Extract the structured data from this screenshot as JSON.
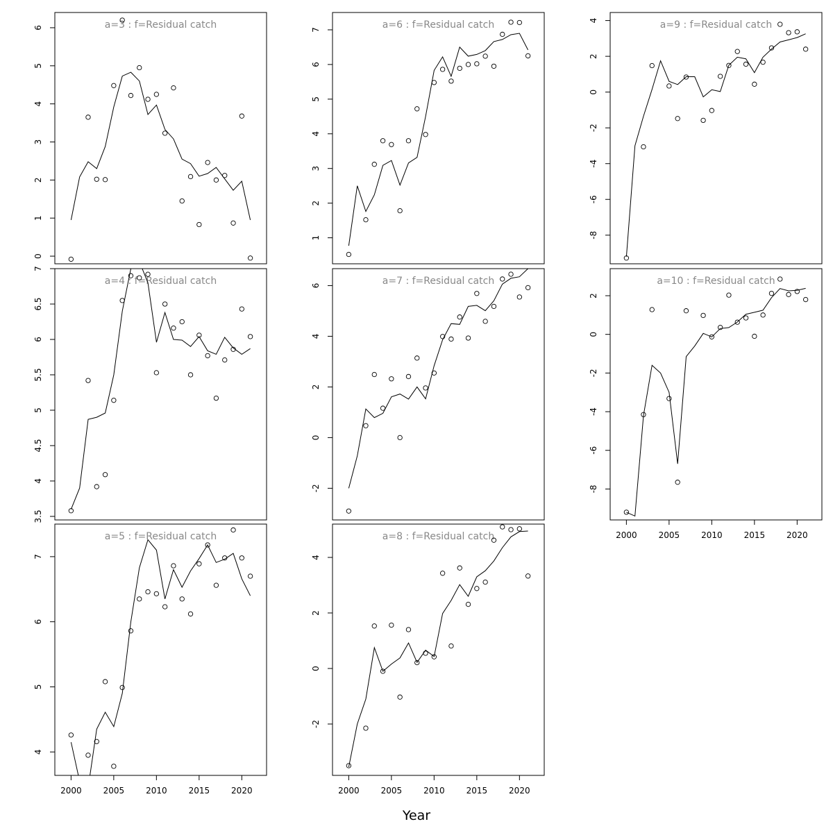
{
  "figure": {
    "xlabel": "Year",
    "x_tick_labels": [
      "2000",
      "2005",
      "2010",
      "2015",
      "2020"
    ]
  },
  "chart_data": [
    {
      "type": "scatter",
      "title": "a=3  :  f=Residual catch",
      "x": [
        2000,
        2001,
        2002,
        2003,
        2004,
        2005,
        2006,
        2007,
        2008,
        2009,
        2010,
        2011,
        2012,
        2013,
        2014,
        2015,
        2016,
        2017,
        2018,
        2019,
        2020,
        2021
      ],
      "series": [
        {
          "kind": "points",
          "values": [
            -0.08,
            null,
            3.65,
            2.02,
            2.01,
            4.48,
            6.2,
            4.22,
            4.95,
            4.12,
            4.25,
            3.23,
            4.42,
            1.45,
            2.09,
            0.83,
            2.46,
            2.0,
            2.12,
            0.87,
            3.68,
            -0.05
          ]
        },
        {
          "kind": "line",
          "values": [
            0.95,
            2.08,
            2.48,
            2.3,
            2.88,
            3.92,
            4.73,
            4.83,
            4.6,
            3.72,
            3.97,
            3.33,
            3.08,
            2.55,
            2.43,
            2.1,
            2.17,
            2.33,
            2.03,
            1.73,
            1.97,
            0.95
          ]
        }
      ],
      "xlim": [
        1998.1,
        2022.9
      ],
      "ylim": [
        -0.2,
        6.4
      ],
      "yticks": [
        0,
        1,
        2,
        3,
        4,
        5,
        6
      ],
      "show_xticks": false
    },
    {
      "type": "scatter",
      "title": "a=4  :  f=Residual catch",
      "x": [
        2000,
        2001,
        2002,
        2003,
        2004,
        2005,
        2006,
        2007,
        2008,
        2009,
        2010,
        2011,
        2012,
        2013,
        2014,
        2015,
        2016,
        2017,
        2018,
        2019,
        2020,
        2021
      ],
      "series": [
        {
          "kind": "points",
          "values": [
            3.58,
            null,
            5.42,
            3.92,
            4.09,
            5.14,
            6.55,
            6.9,
            6.87,
            6.92,
            5.53,
            6.5,
            6.16,
            6.25,
            5.5,
            6.06,
            5.77,
            5.17,
            5.71,
            5.86,
            6.43,
            6.04
          ]
        },
        {
          "kind": "line",
          "values": [
            3.6,
            3.9,
            4.87,
            4.9,
            4.96,
            5.5,
            6.4,
            7.0,
            7.1,
            6.8,
            5.96,
            6.38,
            6.0,
            5.99,
            5.9,
            6.04,
            5.84,
            5.79,
            6.03,
            5.88,
            5.79,
            5.87
          ]
        }
      ],
      "xlim": [
        1998.1,
        2022.9
      ],
      "ylim": [
        3.45,
        7.0
      ],
      "yticks": [
        3.5,
        4.0,
        4.5,
        5.0,
        5.5,
        6.0,
        6.5,
        7.0
      ],
      "show_xticks": false
    },
    {
      "type": "scatter",
      "title": "a=5  :  f=Residual catch",
      "x": [
        2000,
        2001,
        2002,
        2003,
        2004,
        2005,
        2006,
        2007,
        2008,
        2009,
        2010,
        2011,
        2012,
        2013,
        2014,
        2015,
        2016,
        2017,
        2018,
        2019,
        2020,
        2021
      ],
      "series": [
        {
          "kind": "points",
          "values": [
            4.26,
            null,
            3.95,
            4.16,
            5.08,
            3.78,
            4.99,
            5.86,
            6.35,
            6.46,
            6.43,
            6.23,
            6.86,
            6.35,
            6.12,
            6.89,
            7.18,
            6.56,
            6.98,
            7.41,
            6.98,
            6.7
          ]
        },
        {
          "kind": "line",
          "values": [
            4.15,
            3.55,
            3.45,
            4.35,
            4.61,
            4.39,
            4.9,
            6.0,
            6.83,
            7.26,
            7.1,
            6.35,
            6.8,
            6.53,
            6.78,
            6.97,
            7.18,
            6.91,
            6.96,
            7.05,
            6.66,
            6.4
          ]
        }
      ],
      "xlim": [
        1998.1,
        2022.9
      ],
      "ylim": [
        3.64,
        7.5
      ],
      "yticks": [
        4,
        5,
        6,
        7
      ],
      "show_xticks": true
    },
    {
      "type": "scatter",
      "title": "a=6  :  f=Residual catch",
      "x": [
        2000,
        2001,
        2002,
        2003,
        2004,
        2005,
        2006,
        2007,
        2008,
        2009,
        2010,
        2011,
        2012,
        2013,
        2014,
        2015,
        2016,
        2017,
        2018,
        2019,
        2020,
        2021
      ],
      "series": [
        {
          "kind": "points",
          "values": [
            0.52,
            null,
            1.52,
            3.12,
            3.8,
            3.69,
            1.78,
            3.8,
            4.72,
            3.98,
            5.48,
            5.86,
            5.52,
            5.89,
            6.0,
            6.02,
            6.24,
            5.95,
            6.87,
            7.22,
            7.21,
            6.25
          ]
        },
        {
          "kind": "line",
          "values": [
            0.77,
            2.5,
            1.76,
            2.24,
            3.09,
            3.23,
            2.52,
            3.16,
            3.32,
            4.5,
            5.83,
            6.22,
            5.66,
            6.5,
            6.24,
            6.29,
            6.4,
            6.66,
            6.72,
            6.86,
            6.9,
            6.42
          ]
        }
      ],
      "xlim": [
        1998.1,
        2022.9
      ],
      "ylim": [
        0.25,
        7.5
      ],
      "yticks": [
        1,
        2,
        3,
        4,
        5,
        6,
        7
      ],
      "show_xticks": false
    },
    {
      "type": "scatter",
      "title": "a=7  :  f=Residual catch",
      "x": [
        2000,
        2001,
        2002,
        2003,
        2004,
        2005,
        2006,
        2007,
        2008,
        2009,
        2010,
        2011,
        2012,
        2013,
        2014,
        2015,
        2016,
        2017,
        2018,
        2019,
        2020,
        2021
      ],
      "series": [
        {
          "kind": "points",
          "values": [
            -2.9,
            null,
            0.47,
            2.49,
            1.16,
            2.32,
            0.0,
            2.41,
            3.14,
            1.96,
            2.55,
            3.99,
            3.89,
            4.76,
            3.93,
            5.69,
            4.59,
            5.18,
            6.26,
            6.45,
            5.55,
            5.92
          ]
        },
        {
          "kind": "line",
          "values": [
            -2.0,
            -0.72,
            1.13,
            0.79,
            0.96,
            1.61,
            1.72,
            1.52,
            2.0,
            1.53,
            2.84,
            3.86,
            4.5,
            4.47,
            5.18,
            5.22,
            5.01,
            5.4,
            6.06,
            6.29,
            6.35,
            6.67
          ]
        }
      ],
      "xlim": [
        1998.1,
        2022.9
      ],
      "ylim": [
        -3.25,
        6.67
      ],
      "yticks": [
        -2,
        0,
        2,
        4,
        6
      ],
      "show_xticks": false
    },
    {
      "type": "scatter",
      "title": "a=8  :  f=Residual catch",
      "x": [
        2000,
        2001,
        2002,
        2003,
        2004,
        2005,
        2006,
        2007,
        2008,
        2009,
        2010,
        2011,
        2012,
        2013,
        2014,
        2015,
        2016,
        2017,
        2018,
        2019,
        2020,
        2021
      ],
      "series": [
        {
          "kind": "points",
          "values": [
            -3.5,
            null,
            -2.15,
            1.53,
            -0.1,
            1.56,
            -1.03,
            1.4,
            0.21,
            0.55,
            0.42,
            3.43,
            0.81,
            3.62,
            2.31,
            2.88,
            3.11,
            4.62,
            5.1,
            5.0,
            5.03,
            3.33
          ]
        },
        {
          "kind": "line",
          "values": [
            -3.55,
            -2.0,
            -1.1,
            0.75,
            -0.1,
            0.16,
            0.38,
            0.92,
            0.22,
            0.66,
            0.43,
            1.98,
            2.45,
            3.02,
            2.6,
            3.3,
            3.52,
            3.87,
            4.35,
            4.74,
            4.93,
            4.95
          ]
        }
      ],
      "xlim": [
        1998.1,
        2022.9
      ],
      "ylim": [
        -3.85,
        5.2
      ],
      "yticks": [
        -2,
        0,
        2,
        4
      ],
      "show_xticks": true
    },
    {
      "type": "scatter",
      "title": "a=9  :  f=Residual catch",
      "x": [
        2000,
        2001,
        2002,
        2003,
        2004,
        2005,
        2006,
        2007,
        2008,
        2009,
        2010,
        2011,
        2012,
        2013,
        2014,
        2015,
        2016,
        2017,
        2018,
        2019,
        2020,
        2021
      ],
      "series": [
        {
          "kind": "points",
          "values": [
            -9.28,
            null,
            -3.06,
            1.48,
            null,
            0.34,
            -1.48,
            0.84,
            null,
            -1.58,
            -1.03,
            0.88,
            1.49,
            2.27,
            1.56,
            0.44,
            1.67,
            2.47,
            3.79,
            3.32,
            3.37,
            2.4
          ]
        },
        {
          "kind": "line",
          "values": [
            -9.2,
            -3.0,
            -1.35,
            0.15,
            1.75,
            0.6,
            0.42,
            0.86,
            0.86,
            -0.27,
            0.13,
            0.03,
            1.5,
            1.95,
            1.86,
            1.09,
            1.95,
            2.4,
            2.8,
            2.92,
            3.05,
            3.26
          ]
        }
      ],
      "xlim": [
        1998.1,
        2022.9
      ],
      "ylim": [
        -9.6,
        4.45
      ],
      "yticks": [
        -8,
        -6,
        -4,
        -2,
        0,
        2,
        4
      ],
      "show_xticks": false
    },
    {
      "type": "scatter",
      "title": "a=10  :  f=Residual catch",
      "x": [
        2000,
        2001,
        2002,
        2003,
        2004,
        2005,
        2006,
        2007,
        2008,
        2009,
        2010,
        2011,
        2012,
        2013,
        2014,
        2015,
        2016,
        2017,
        2018,
        2019,
        2020,
        2021
      ],
      "series": [
        {
          "kind": "points",
          "values": [
            -9.2,
            null,
            -4.15,
            1.28,
            null,
            -3.32,
            -7.65,
            1.22,
            null,
            0.98,
            -0.13,
            0.36,
            2.03,
            0.63,
            0.85,
            -0.1,
            1.0,
            2.12,
            2.86,
            2.06,
            2.22,
            1.8
          ]
        },
        {
          "kind": "line",
          "values": [
            -9.2,
            -9.4,
            -4.2,
            -1.6,
            -2.0,
            -3.0,
            -6.7,
            -1.15,
            -0.6,
            0.05,
            -0.13,
            0.3,
            0.35,
            0.64,
            1.04,
            1.14,
            1.25,
            1.9,
            2.37,
            2.25,
            2.28,
            2.38
          ]
        }
      ],
      "xlim": [
        1998.1,
        2022.9
      ],
      "ylim": [
        -9.6,
        3.4
      ],
      "yticks": [
        -8,
        -6,
        -4,
        -2,
        0,
        2
      ],
      "show_xticks": true
    }
  ]
}
